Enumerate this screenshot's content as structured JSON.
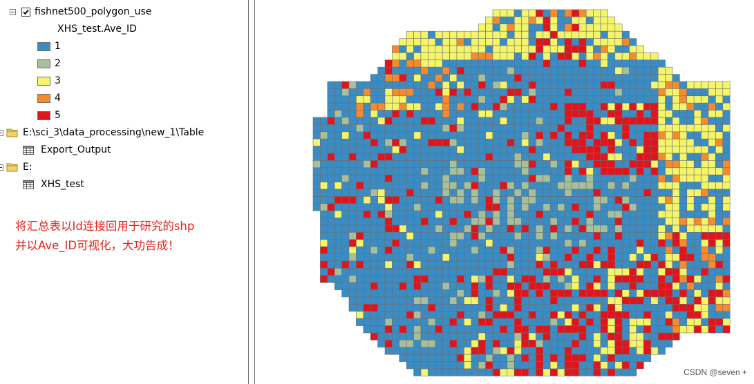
{
  "toc": {
    "layer": {
      "name": "fishnet500_polygon_use",
      "checked": true
    },
    "field_name": "XHS_test.Ave_ID",
    "legend": [
      {
        "label": "1",
        "color": "#3a8cc4"
      },
      {
        "label": "2",
        "color": "#a6c09c"
      },
      {
        "label": "3",
        "color": "#f5f56a"
      },
      {
        "label": "4",
        "color": "#f58a2e"
      },
      {
        "label": "5",
        "color": "#e0141c"
      }
    ],
    "workspaces": [
      {
        "path": "E:\\sci_3\\data_processing\\new_1\\Table",
        "table": "Export_Output"
      },
      {
        "path": "E:",
        "table": "XHS_test"
      }
    ]
  },
  "note": {
    "line1": "将汇总表以Id连接回用于研究的shp",
    "line2": "并以Ave_ID可视化，大功告成！"
  },
  "map": {
    "grid_outline_color": "#6e6e6e",
    "class_colors": [
      "#3a8cc4",
      "#a6c09c",
      "#f5f56a",
      "#f58a2e",
      "#e0141c"
    ]
  },
  "watermark": "CSDN @seven +"
}
